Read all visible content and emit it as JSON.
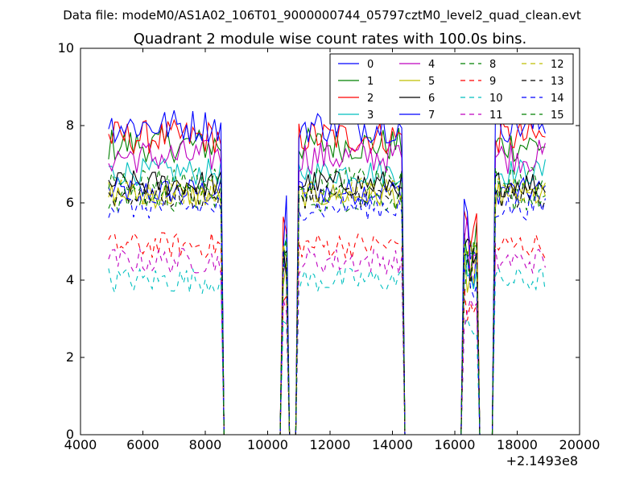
{
  "suptitle": "Data file: modeM0/AS1A02_106T01_9000000744_05797cztM0_level2_quad_clean.evt",
  "chart_data": {
    "type": "line",
    "title": "Quadrant 2 module wise count rates with 100.0s bins.",
    "xlabel": "",
    "ylabel": "",
    "x_offset_label": "+2.1493e8",
    "xlim": [
      4000,
      20000
    ],
    "ylim": [
      0,
      10
    ],
    "x_ticks": [
      4000,
      6000,
      8000,
      10000,
      12000,
      14000,
      16000,
      18000,
      20000
    ],
    "y_ticks": [
      0,
      2,
      4,
      6,
      8,
      10
    ],
    "grid": false,
    "legend_position": "top-right",
    "legend_columns": 4,
    "segments": [
      {
        "start": 4900,
        "end": 8500
      },
      {
        "start": 10500,
        "end": 10600
      },
      {
        "start": 11000,
        "end": 14300
      },
      {
        "start": 16300,
        "end": 16700
      },
      {
        "start": 17300,
        "end": 18900
      }
    ],
    "series": [
      {
        "name": "0",
        "color": "#0000ff",
        "style": "solid",
        "level": 6.3
      },
      {
        "name": "1",
        "color": "#008000",
        "style": "solid",
        "level": 7.5
      },
      {
        "name": "2",
        "color": "#ff0000",
        "style": "solid",
        "level": 7.7
      },
      {
        "name": "3",
        "color": "#00bfbf",
        "style": "solid",
        "level": 6.8
      },
      {
        "name": "4",
        "color": "#bf00bf",
        "style": "solid",
        "level": 7.2
      },
      {
        "name": "5",
        "color": "#bfbf00",
        "style": "solid",
        "level": 6.2
      },
      {
        "name": "6",
        "color": "#000000",
        "style": "solid",
        "level": 6.5
      },
      {
        "name": "7",
        "color": "#0000ff",
        "style": "solid",
        "level": 8.0
      },
      {
        "name": "8",
        "color": "#008000",
        "style": "dashed",
        "level": 6.1
      },
      {
        "name": "9",
        "color": "#ff0000",
        "style": "dashed",
        "level": 4.9
      },
      {
        "name": "10",
        "color": "#00bfbf",
        "style": "dashed",
        "level": 4.0
      },
      {
        "name": "11",
        "color": "#bf00bf",
        "style": "dashed",
        "level": 4.5
      },
      {
        "name": "12",
        "color": "#bfbf00",
        "style": "dashed",
        "level": 6.3
      },
      {
        "name": "13",
        "color": "#000000",
        "style": "dashed",
        "level": 6.2
      },
      {
        "name": "14",
        "color": "#0000ff",
        "style": "dashed",
        "level": 5.9
      },
      {
        "name": "15",
        "color": "#008000",
        "style": "dashed",
        "level": 6.6
      }
    ]
  }
}
